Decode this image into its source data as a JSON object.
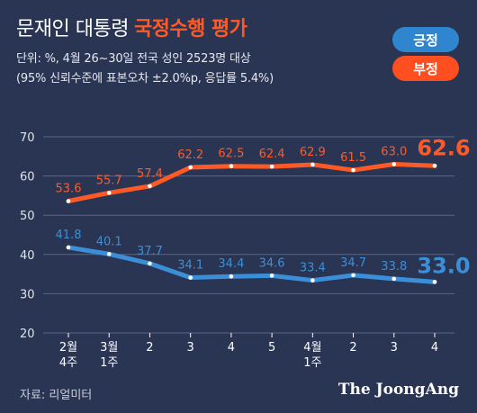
{
  "header": {
    "title_part1": "문재인 대통령",
    "title_part2": "국정수행 평가",
    "subtitle_line1": "단위: %, 4월 26~30일 전국 성인 2523명 대상",
    "subtitle_line2": "(95% 신뢰수준에 표본오차 ±2.0%p, 응답률 5.4%)"
  },
  "legend": {
    "positive_label": "긍정",
    "negative_label": "부정"
  },
  "footer": {
    "source": "자료: 리얼미터",
    "brand": "The JoongAng"
  },
  "colors": {
    "background": "#2a3554",
    "positive": "#3b8fd8",
    "negative": "#ff5a26",
    "grid": "#5b6682"
  },
  "chart_data": {
    "type": "line",
    "categories": [
      [
        "2월",
        "4주"
      ],
      [
        "3월",
        "1주"
      ],
      [
        "2"
      ],
      [
        "3"
      ],
      [
        "4"
      ],
      [
        "5"
      ],
      [
        "4월",
        "1주"
      ],
      [
        "2"
      ],
      [
        "3"
      ],
      [
        "4"
      ]
    ],
    "ylim": [
      20,
      70
    ],
    "yticks": [
      20,
      30,
      40,
      50,
      60,
      70
    ],
    "grid": true,
    "series": [
      {
        "name": "부정",
        "color": "#ff5a26",
        "values": [
          53.6,
          55.7,
          57.4,
          62.2,
          62.5,
          62.4,
          62.9,
          61.5,
          63.0,
          62.6
        ],
        "labels": [
          "53.6",
          "55.7",
          "57.4",
          "62.2",
          "62.5",
          "62.4",
          "62.9",
          "61.5",
          "63.0",
          "62.6"
        ]
      },
      {
        "name": "긍정",
        "color": "#3b8fd8",
        "values": [
          41.8,
          40.1,
          37.7,
          34.1,
          34.4,
          34.6,
          33.4,
          34.7,
          33.8,
          33.0
        ],
        "labels": [
          "41.8",
          "40.1",
          "37.7",
          "34.1",
          "34.4",
          "34.6",
          "33.4",
          "34.7",
          "33.8",
          "33.0"
        ]
      }
    ]
  }
}
